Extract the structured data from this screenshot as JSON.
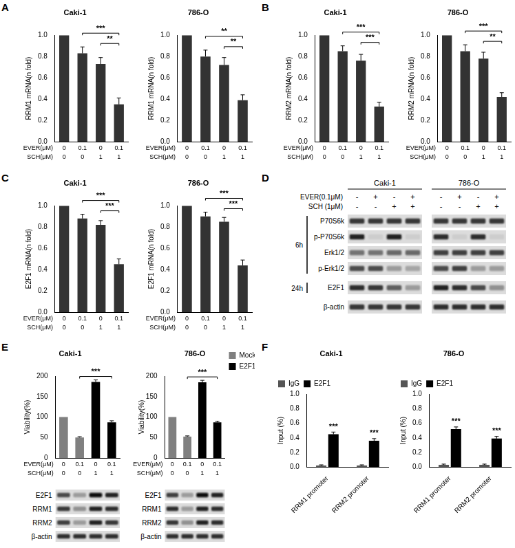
{
  "panel_labels": [
    "A",
    "B",
    "C",
    "D",
    "E",
    "F"
  ],
  "chart_data": [
    {
      "type": "bar",
      "title": "Caki-1",
      "y_label": "RRM1 mRNA(n fold)",
      "categories": [
        null,
        null,
        null,
        null
      ],
      "values": [
        1.0,
        0.83,
        0.73,
        0.35
      ],
      "errors": [
        0,
        0.06,
        0.06,
        0.06
      ],
      "color": "#333333",
      "treatments": [
        {
          "name": "EVER(μM)",
          "values": [
            0,
            0.1,
            0,
            0.1
          ]
        },
        {
          "name": "SCH(μM)",
          "values": [
            0,
            0,
            1,
            1
          ]
        }
      ],
      "ylim": [
        0,
        1
      ],
      "yticks": [
        {
          "value": 0,
          "label": "0.0"
        },
        0.2,
        0.4,
        0.6,
        0.8,
        {
          "value": 1,
          "label": "1.0"
        }
      ],
      "grid": false,
      "tick_labels": "y",
      "significance": [
        {
          "from": 1,
          "to": 3,
          "label": "***"
        },
        {
          "from": 2,
          "to": 3,
          "label": "**"
        }
      ]
    },
    {
      "type": "bar",
      "title": "786-O",
      "y_label": "RRM1 mRNA(n fold)",
      "categories": [
        null,
        null,
        null,
        null
      ],
      "values": [
        1.0,
        0.8,
        0.72,
        0.39
      ],
      "errors": [
        0,
        0.06,
        0.07,
        0.05
      ],
      "color": "#333333",
      "treatments": [
        {
          "name": "EVER(μM)",
          "values": [
            0,
            0.1,
            0,
            0.1
          ]
        },
        {
          "name": "SCH(μM)",
          "values": [
            0,
            0,
            1,
            1
          ]
        }
      ],
      "ylim": [
        0,
        1
      ],
      "yticks": [
        {
          "value": 0,
          "label": "0.0"
        },
        0.2,
        0.4,
        0.6,
        0.8,
        {
          "value": 1,
          "label": "1.0"
        }
      ],
      "grid": false,
      "tick_labels": "y",
      "significance": [
        {
          "from": 1,
          "to": 3,
          "label": "**"
        },
        {
          "from": 2,
          "to": 3,
          "label": "**"
        }
      ]
    },
    {
      "type": "bar",
      "title": "Caki-1",
      "y_label": "RRM2 mRNA(n fold)",
      "categories": [
        null,
        null,
        null,
        null
      ],
      "values": [
        1.0,
        0.85,
        0.76,
        0.33
      ],
      "errors": [
        0,
        0.05,
        0.06,
        0.04
      ],
      "color": "#333333",
      "treatments": [
        {
          "name": "EVER(μM)",
          "values": [
            0,
            0.1,
            0,
            0.1
          ]
        },
        {
          "name": "SCH(μM)",
          "values": [
            0,
            0,
            1,
            1
          ]
        }
      ],
      "ylim": [
        0,
        1
      ],
      "yticks": [
        {
          "value": 0,
          "label": "0.0"
        },
        0.2,
        0.4,
        0.6,
        0.8,
        {
          "value": 1,
          "label": "1.0"
        }
      ],
      "grid": false,
      "tick_labels": "y",
      "significance": [
        {
          "from": 1,
          "to": 3,
          "label": "***"
        },
        {
          "from": 2,
          "to": 3,
          "label": "***"
        }
      ]
    },
    {
      "type": "bar",
      "title": "786-O",
      "y_label": "RRM2 mRNA(n fold)",
      "categories": [
        null,
        null,
        null,
        null
      ],
      "values": [
        1.0,
        0.85,
        0.78,
        0.42
      ],
      "errors": [
        0,
        0.06,
        0.06,
        0.04
      ],
      "color": "#333333",
      "treatments": [
        {
          "name": "EVER(μM)",
          "values": [
            0,
            0.1,
            0,
            0.1
          ]
        },
        {
          "name": "SCH(μM)",
          "values": [
            0,
            0,
            1,
            1
          ]
        }
      ],
      "ylim": [
        0,
        1
      ],
      "yticks": [
        {
          "value": 0,
          "label": "0.0"
        },
        0.2,
        0.4,
        0.6,
        0.8,
        {
          "value": 1,
          "label": "1.0"
        }
      ],
      "grid": false,
      "tick_labels": "y",
      "significance": [
        {
          "from": 1,
          "to": 3,
          "label": "***"
        },
        {
          "from": 2,
          "to": 3,
          "label": "**"
        }
      ]
    },
    {
      "type": "bar",
      "title": "Caki-1",
      "y_label": "E2F1 mRNA(n fold)",
      "categories": [
        null,
        null,
        null,
        null
      ],
      "values": [
        1.0,
        0.88,
        0.82,
        0.45
      ],
      "errors": [
        0,
        0.04,
        0.04,
        0.05
      ],
      "color": "#333333",
      "treatments": [
        {
          "name": "EVER(μM)",
          "values": [
            0,
            0.1,
            0,
            0.1
          ]
        },
        {
          "name": "SCH(μM)",
          "values": [
            0,
            0,
            1,
            1
          ]
        }
      ],
      "ylim": [
        0,
        1
      ],
      "yticks": [
        {
          "value": 0,
          "label": "0.0"
        },
        0.2,
        0.4,
        0.6,
        0.8,
        {
          "value": 1,
          "label": "1.0"
        }
      ],
      "grid": false,
      "tick_labels": "y",
      "significance": [
        {
          "from": 1,
          "to": 3,
          "label": "***"
        },
        {
          "from": 2,
          "to": 3,
          "label": "***"
        }
      ]
    },
    {
      "type": "bar",
      "title": "786-O",
      "y_label": "E2F1 mRNA(n fold)",
      "categories": [
        null,
        null,
        null,
        null
      ],
      "values": [
        1.0,
        0.9,
        0.85,
        0.44
      ],
      "errors": [
        0,
        0.04,
        0.04,
        0.05
      ],
      "color": "#333333",
      "treatments": [
        {
          "name": "EVER(μM)",
          "values": [
            0,
            0.1,
            0,
            0.1
          ]
        },
        {
          "name": "SCH(μM)",
          "values": [
            0,
            0,
            1,
            1
          ]
        }
      ],
      "ylim": [
        0,
        1
      ],
      "yticks": [
        {
          "value": 0,
          "label": "0.0"
        },
        0.2,
        0.4,
        0.6,
        0.8,
        {
          "value": 1,
          "label": "1.0"
        }
      ],
      "grid": false,
      "tick_labels": "y",
      "significance": [
        {
          "from": 1,
          "to": 3,
          "label": "***"
        },
        {
          "from": 2,
          "to": 3,
          "label": "***"
        }
      ]
    },
    {
      "type": "bar",
      "title": "Caki-1",
      "y_label": "Viability(%)",
      "categories": [
        null,
        null,
        null,
        null
      ],
      "series": [
        {
          "name": "Mock",
          "color": "#808080",
          "values": [
            100,
            50,
            null,
            null
          ],
          "errors": [
            0,
            2,
            null,
            null
          ]
        },
        {
          "name": "E2F1",
          "color": "#000000",
          "values": [
            null,
            null,
            186,
            87
          ],
          "errors": [
            null,
            null,
            5,
            4
          ]
        }
      ],
      "treatments": [
        {
          "name": "EVER(μM)",
          "values": [
            0,
            0.1,
            0,
            0.1
          ]
        },
        {
          "name": "SCH(μM)",
          "values": [
            0,
            0,
            1,
            1
          ]
        }
      ],
      "ylim": [
        0,
        200
      ],
      "yticks": [
        0,
        50,
        100,
        150,
        200
      ],
      "grid": false,
      "tick_labels": "y",
      "significance": [
        {
          "from": 1,
          "to": 3,
          "label": "***"
        }
      ],
      "blot": {
        "rows": [
          {
            "name": "E2F1",
            "intensity": [
              0.7,
              0.3,
              1.0,
              0.9
            ]
          },
          {
            "name": "RRM1",
            "intensity": [
              0.8,
              0.35,
              0.9,
              0.85
            ]
          },
          {
            "name": "RRM2",
            "intensity": [
              0.75,
              0.3,
              0.9,
              0.8
            ]
          },
          {
            "name": "β-actin",
            "intensity": [
              0.85,
              0.85,
              0.85,
              0.85
            ]
          }
        ]
      }
    },
    {
      "type": "bar",
      "title": "786-O",
      "y_label": "Viability(%)",
      "categories": [
        null,
        null,
        null,
        null
      ],
      "series": [
        {
          "name": "Mock",
          "color": "#808080",
          "values": [
            100,
            52,
            null,
            null
          ],
          "errors": [
            0,
            2,
            null,
            null
          ]
        },
        {
          "name": "E2F1",
          "color": "#000000",
          "values": [
            null,
            null,
            185,
            87
          ],
          "errors": [
            null,
            null,
            5,
            3
          ]
        }
      ],
      "treatments": [
        {
          "name": "EVER(μM)",
          "values": [
            0,
            0.1,
            0,
            0.1
          ]
        },
        {
          "name": "SCH(μM)",
          "values": [
            0,
            0,
            1,
            1
          ]
        }
      ],
      "ylim": [
        0,
        200
      ],
      "yticks": [
        0,
        50,
        100,
        150,
        200
      ],
      "grid": false,
      "tick_labels": "y",
      "legend": "right",
      "significance": [
        {
          "from": 1,
          "to": 3,
          "label": "***"
        }
      ],
      "blot": {
        "rows": [
          {
            "name": "E2F1",
            "intensity": [
              0.75,
              0.3,
              1.0,
              0.9
            ]
          },
          {
            "name": "RRM1",
            "intensity": [
              0.85,
              0.3,
              0.9,
              0.85
            ]
          },
          {
            "name": "RRM2",
            "intensity": [
              0.8,
              0.35,
              0.9,
              0.85
            ]
          },
          {
            "name": "β-actin",
            "intensity": [
              0.85,
              0.85,
              0.85,
              0.85
            ]
          }
        ]
      }
    },
    {
      "type": "bar",
      "title": "Caki-1",
      "y_label": "Input (%)",
      "categories": [
        "RRM1 promoter",
        "RRM2 promoter"
      ],
      "series": [
        {
          "name": "IgG",
          "color": "#555555",
          "values": [
            0.02,
            0.02
          ],
          "errors": [
            0.01,
            0.01
          ]
        },
        {
          "name": "E2F1",
          "color": "#000000",
          "values": [
            0.45,
            0.36
          ],
          "errors": [
            0.03,
            0.03
          ],
          "significance_labels": [
            "***",
            "***"
          ]
        }
      ],
      "ylim": [
        0,
        1
      ],
      "yticks": [
        {
          "value": 0,
          "label": "0.0"
        },
        0.2,
        0.4,
        0.6,
        0.8,
        {
          "value": 1,
          "label": "1.0"
        }
      ],
      "grid": false,
      "legend": "top"
    },
    {
      "type": "bar",
      "title": "786-O",
      "y_label": "Input (%)",
      "categories": [
        "RRM1 promoter",
        "RRM2 promoter"
      ],
      "series": [
        {
          "name": "IgG",
          "color": "#555555",
          "values": [
            0.03,
            0.03
          ],
          "errors": [
            0.01,
            0.01
          ]
        },
        {
          "name": "E2F1",
          "color": "#000000",
          "values": [
            0.52,
            0.39
          ],
          "errors": [
            0.03,
            0.03
          ],
          "significance_labels": [
            "***",
            "***"
          ]
        }
      ],
      "ylim": [
        0,
        1
      ],
      "yticks": [
        {
          "value": 0,
          "label": "0.0"
        },
        0.2,
        0.4,
        0.6,
        0.8,
        {
          "value": 1,
          "label": "1.0"
        }
      ],
      "grid": false,
      "legend": "top"
    }
  ],
  "western_blot": {
    "groups": [
      {
        "title": "Caki-1"
      },
      {
        "title": "786-O"
      }
    ],
    "conditions": [
      {
        "name": "EVER(0.1μM)",
        "signs": [
          "-",
          "+",
          "-",
          "+",
          "-",
          "+",
          "-",
          "+"
        ]
      },
      {
        "name": "SCH (1μM)",
        "signs": [
          "-",
          "-",
          "+",
          "+",
          "-",
          "-",
          "+",
          "+"
        ]
      }
    ],
    "sections": [
      {
        "label": "6h",
        "rows": [
          {
            "name": "P70S6k",
            "intensity": [
              0.8,
              0.8,
              0.8,
              0.8,
              0.8,
              0.8,
              0.8,
              0.8
            ]
          },
          {
            "name": "p-P70S6k",
            "intensity": [
              0.9,
              0.05,
              0.9,
              0.05,
              0.85,
              0.05,
              0.85,
              0.05
            ]
          },
          {
            "name": "Erk1/2",
            "intensity": [
              0.5,
              0.5,
              0.55,
              0.55,
              0.75,
              0.75,
              0.75,
              0.75
            ]
          },
          {
            "name": "p-Erk1/2",
            "intensity": [
              0.7,
              0.7,
              0.3,
              0.25,
              0.7,
              0.75,
              0.3,
              0.3
            ]
          }
        ]
      },
      {
        "label": "24h",
        "rows": [
          {
            "name": "E2F1",
            "intensity": [
              0.85,
              0.8,
              0.6,
              0.3,
              0.9,
              0.85,
              0.7,
              0.35
            ]
          }
        ]
      },
      {
        "rows": [
          {
            "name": "β-actin",
            "intensity": [
              0.8,
              0.8,
              0.8,
              0.8,
              0.85,
              0.85,
              0.85,
              0.85
            ]
          }
        ]
      }
    ]
  }
}
